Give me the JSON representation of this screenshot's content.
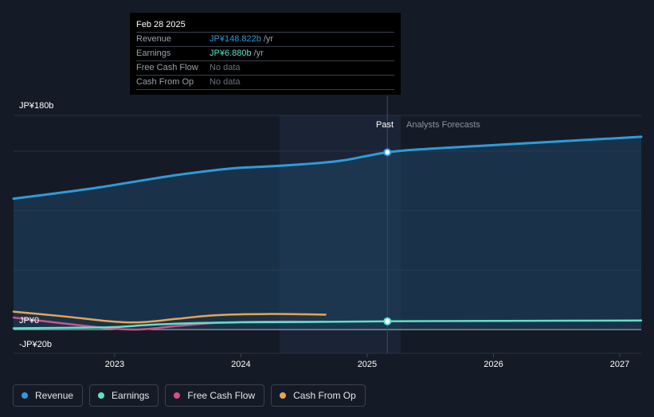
{
  "tooltip": {
    "date": "Feb 28 2025",
    "rows": [
      {
        "name": "Revenue",
        "value": "JP¥148.822b",
        "unit": "/yr",
        "color": "#2d9cdb"
      },
      {
        "name": "Earnings",
        "value": "JP¥6.880b",
        "unit": "/yr",
        "color": "#5ee1c8"
      },
      {
        "name": "Free Cash Flow",
        "value": "No data",
        "unit": ""
      },
      {
        "name": "Cash From Op",
        "value": "No data",
        "unit": ""
      }
    ]
  },
  "labels": {
    "past": "Past",
    "forecast": "Analysts Forecasts"
  },
  "legend": [
    {
      "name": "Revenue",
      "color": "#2d9cdb"
    },
    {
      "name": "Earnings",
      "color": "#5ee1c8"
    },
    {
      "name": "Free Cash Flow",
      "color": "#d64f87"
    },
    {
      "name": "Cash From Op",
      "color": "#e8a552"
    }
  ],
  "chart_data": {
    "type": "line",
    "xlabel": "",
    "ylabel": "",
    "x_ticks": [
      "2023",
      "2024",
      "2025",
      "2026",
      "2027"
    ],
    "y_tick_labels": [
      "JP¥180b",
      "JP¥0",
      "-JP¥20b"
    ],
    "ylim": [
      -20,
      180
    ],
    "xlim": [
      2022.2,
      2027.17
    ],
    "highlight_date": 2025.16,
    "grid": true,
    "series": [
      {
        "name": "Revenue",
        "color": "#2d9cdb",
        "x": [
          2022.2,
          2022.5,
          2022.85,
          2023.2,
          2023.5,
          2023.8,
          2024.0,
          2024.2,
          2024.5,
          2024.8,
          2025.16,
          2025.5,
          2026.0,
          2026.5,
          2027.17
        ],
        "y": [
          110,
          114,
          119,
          125,
          130,
          134,
          136,
          137,
          139,
          142,
          149,
          152,
          155,
          158,
          162
        ]
      },
      {
        "name": "Earnings",
        "color": "#5ee1c8",
        "x": [
          2022.2,
          2022.7,
          2023.0,
          2023.3,
          2023.7,
          2024.0,
          2024.5,
          2025.16,
          2026.0,
          2027.17
        ],
        "y": [
          1,
          1.5,
          2,
          4,
          5.5,
          6,
          6.3,
          6.88,
          7.2,
          7.5
        ]
      },
      {
        "name": "Free Cash Flow",
        "color": "#d64f87",
        "x": [
          2022.2,
          2022.6,
          2022.95,
          2023.2,
          2023.5,
          2023.8,
          2024.2,
          2024.67
        ],
        "y": [
          10,
          5,
          1,
          0,
          3,
          5.5,
          6.5,
          6.5
        ]
      },
      {
        "name": "Cash From Op",
        "color": "#e8a552",
        "x": [
          2022.2,
          2022.6,
          2022.95,
          2023.2,
          2023.5,
          2023.8,
          2024.2,
          2024.67
        ],
        "y": [
          15,
          11,
          7,
          6,
          9,
          12,
          13,
          12.5
        ]
      }
    ]
  }
}
